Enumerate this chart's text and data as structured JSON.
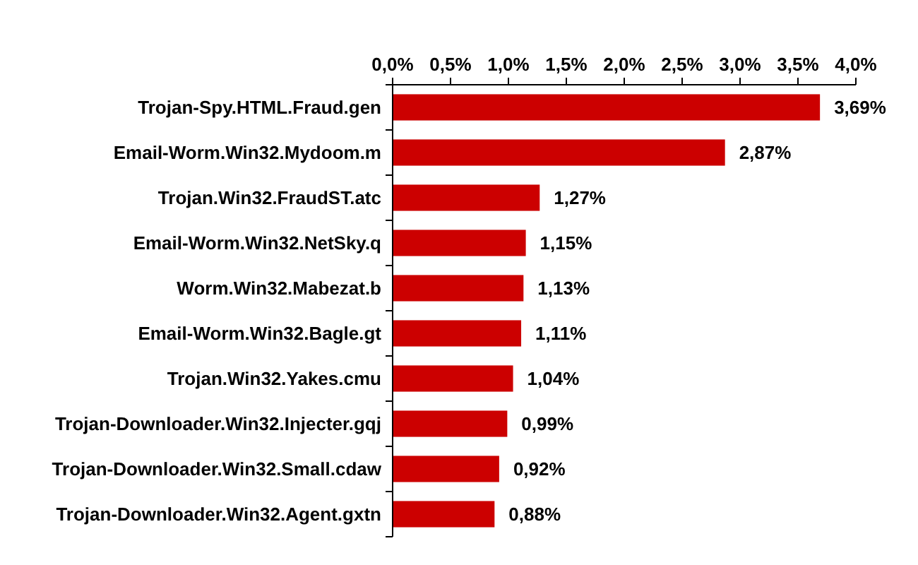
{
  "chart_data": {
    "type": "bar",
    "orientation": "horizontal",
    "categories": [
      "Trojan-Spy.HTML.Fraud.gen",
      "Email-Worm.Win32.Mydoom.m",
      "Trojan.Win32.FraudST.atc",
      "Email-Worm.Win32.NetSky.q",
      "Worm.Win32.Mabezat.b",
      "Email-Worm.Win32.Bagle.gt",
      "Trojan.Win32.Yakes.cmu",
      "Trojan-Downloader.Win32.Injecter.gqj",
      "Trojan-Downloader.Win32.Small.cdaw",
      "Trojan-Downloader.Win32.Agent.gxtn"
    ],
    "values": [
      3.69,
      2.87,
      1.27,
      1.15,
      1.13,
      1.11,
      1.04,
      0.99,
      0.92,
      0.88
    ],
    "value_labels": [
      "3,69%",
      "2,87%",
      "1,27%",
      "1,15%",
      "1,13%",
      "1,11%",
      "1,04%",
      "0,99%",
      "0,92%",
      "0,88%"
    ],
    "color": "#cc0000",
    "xlim": [
      0,
      4
    ],
    "xticks": [
      {
        "value": 0,
        "label": "0,0%"
      },
      {
        "value": 0.5,
        "label": "0,5%"
      },
      {
        "value": 1,
        "label": "1,0%"
      },
      {
        "value": 1.5,
        "label": "1,5%"
      },
      {
        "value": 2,
        "label": "2,0%"
      },
      {
        "value": 2.5,
        "label": "2,5%"
      },
      {
        "value": 3,
        "label": "3,0%"
      },
      {
        "value": 3.5,
        "label": "3,5%"
      },
      {
        "value": 4,
        "label": "4,0%"
      }
    ]
  }
}
